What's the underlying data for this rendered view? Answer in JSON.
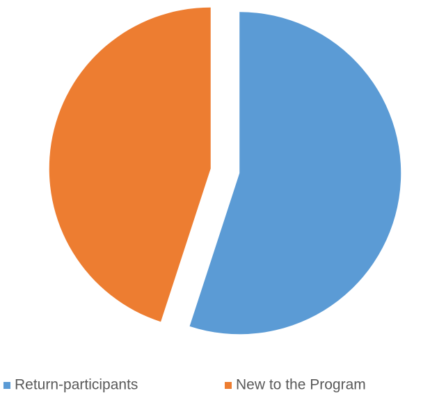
{
  "chart_data": {
    "type": "pie",
    "categories": [
      "Return-participants",
      "New to the Program"
    ],
    "values": [
      55,
      45
    ],
    "colors": [
      "#5b9bd5",
      "#ed7d31"
    ],
    "start_angle": 0,
    "direction": "clockwise",
    "exploded": true,
    "legend": "bottom"
  }
}
